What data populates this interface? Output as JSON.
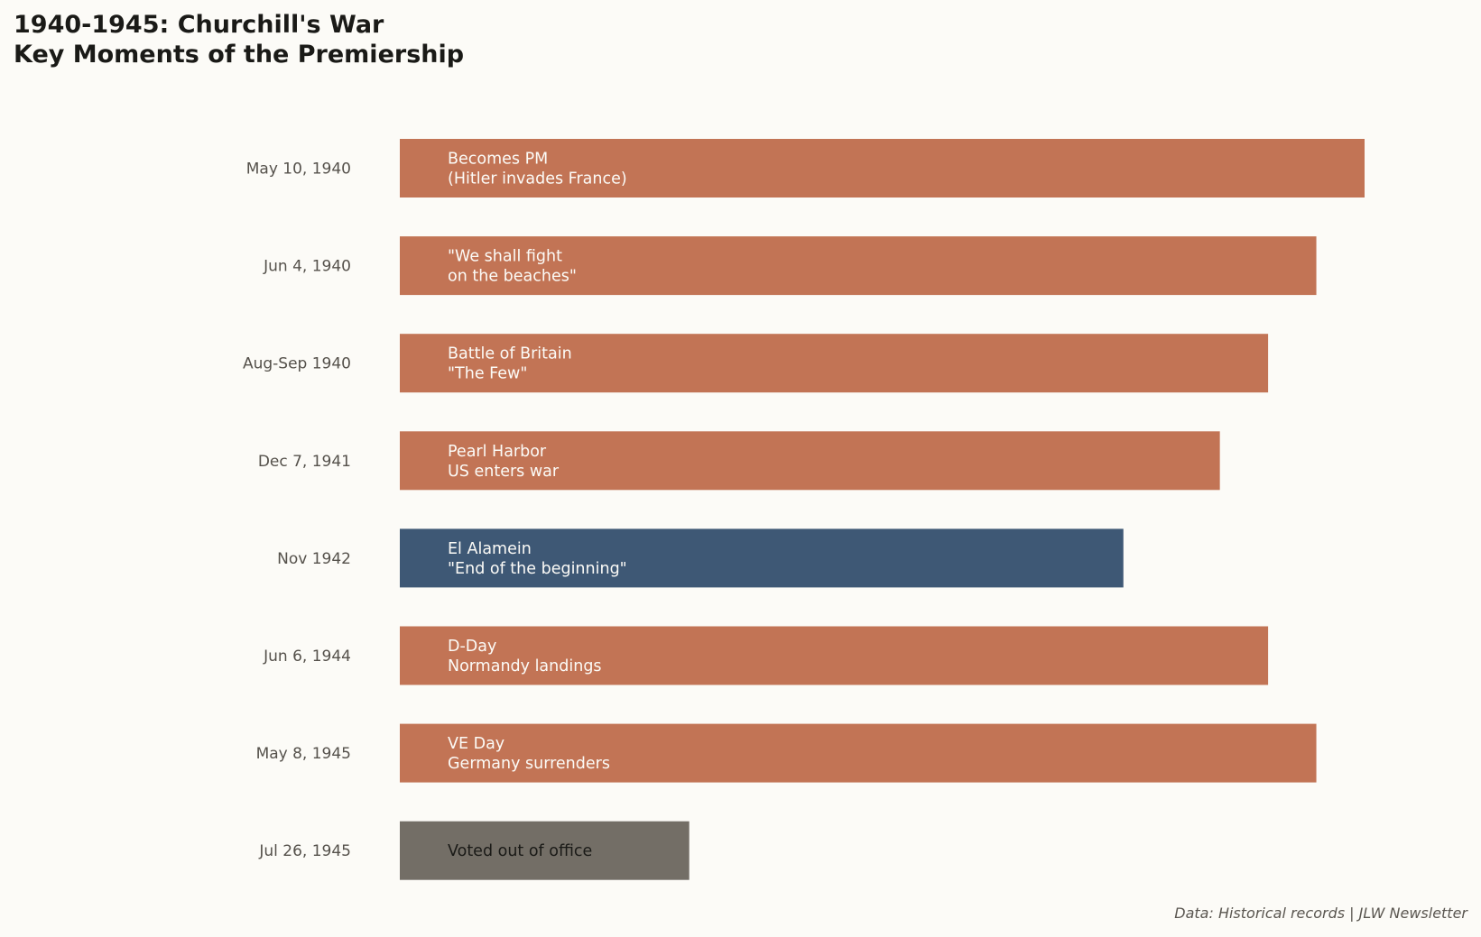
{
  "title": "1940-1945: Churchill's War\nKey Moments of the Premiership",
  "source": "Data: Historical records | JLW Newsletter",
  "chart_data": {
    "type": "bar",
    "orientation": "horizontal",
    "categories": [
      "May 10, 1940",
      "Jun 4, 1940",
      "Aug-Sep 1940",
      "Dec 7, 1941",
      "Nov 1942",
      "Jun 6, 1944",
      "May 8, 1945",
      "Jul 26, 1945"
    ],
    "values": [
      10,
      9.5,
      9,
      8.5,
      7.5,
      9,
      9.5,
      3
    ],
    "bar_labels": [
      [
        "Becomes PM",
        "(Hitler invades France)"
      ],
      [
        "\"We shall fight",
        "on the beaches\""
      ],
      [
        "Battle of Britain",
        "\"The Few\""
      ],
      [
        "Pearl Harbor",
        "US enters war"
      ],
      [
        "El Alamein",
        "\"End of the beginning\""
      ],
      [
        "D-Day",
        "Normandy landings"
      ],
      [
        "VE Day",
        "Germany surrenders"
      ],
      [
        "Voted out of office"
      ]
    ],
    "colors": [
      "#c27455",
      "#c27455",
      "#c27455",
      "#c27455",
      "#3e5875",
      "#c27455",
      "#c27455",
      "#736e66"
    ],
    "label_colors": [
      "#fcfbf7",
      "#fcfbf7",
      "#fcfbf7",
      "#fcfbf7",
      "#fcfbf7",
      "#fcfbf7",
      "#fcfbf7",
      "#1a1a17"
    ],
    "xlim": [
      0,
      10
    ],
    "axes_visible": false,
    "grid": false
  }
}
